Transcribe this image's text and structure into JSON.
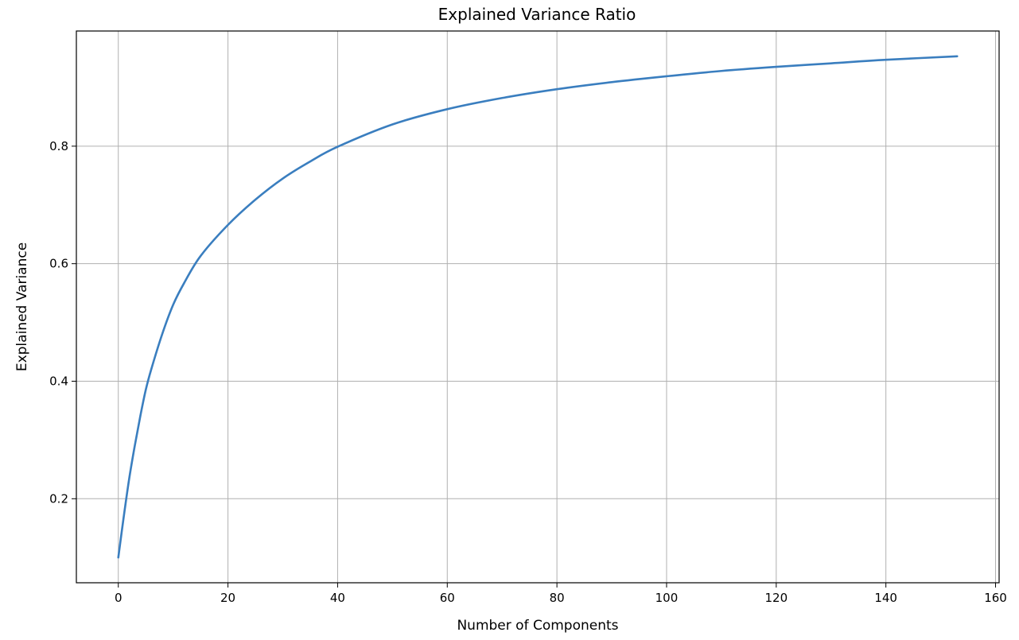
{
  "chart_data": {
    "type": "line",
    "title": "Explained Variance Ratio",
    "xlabel": "Number of Components",
    "ylabel": "Explained Variance",
    "xlim": [
      -7.65,
      160.65
    ],
    "ylim": [
      0.057,
      0.996
    ],
    "xticks": [
      0,
      20,
      40,
      60,
      80,
      100,
      120,
      140,
      160
    ],
    "yticks": [
      0.2,
      0.4,
      0.6,
      0.8
    ],
    "grid": true,
    "line_color": "#3a7ebf",
    "series": [
      {
        "x": [
          0,
          1,
          2,
          3,
          4,
          5,
          6,
          8,
          10,
          12,
          15,
          20,
          25,
          30,
          35,
          40,
          50,
          60,
          70,
          80,
          90,
          100,
          110,
          120,
          130,
          140,
          153
        ],
        "values": [
          0.1,
          0.17,
          0.235,
          0.29,
          0.34,
          0.385,
          0.42,
          0.48,
          0.53,
          0.567,
          0.613,
          0.666,
          0.709,
          0.745,
          0.774,
          0.799,
          0.837,
          0.863,
          0.882,
          0.897,
          0.909,
          0.919,
          0.928,
          0.935,
          0.941,
          0.947,
          0.953
        ]
      }
    ]
  }
}
